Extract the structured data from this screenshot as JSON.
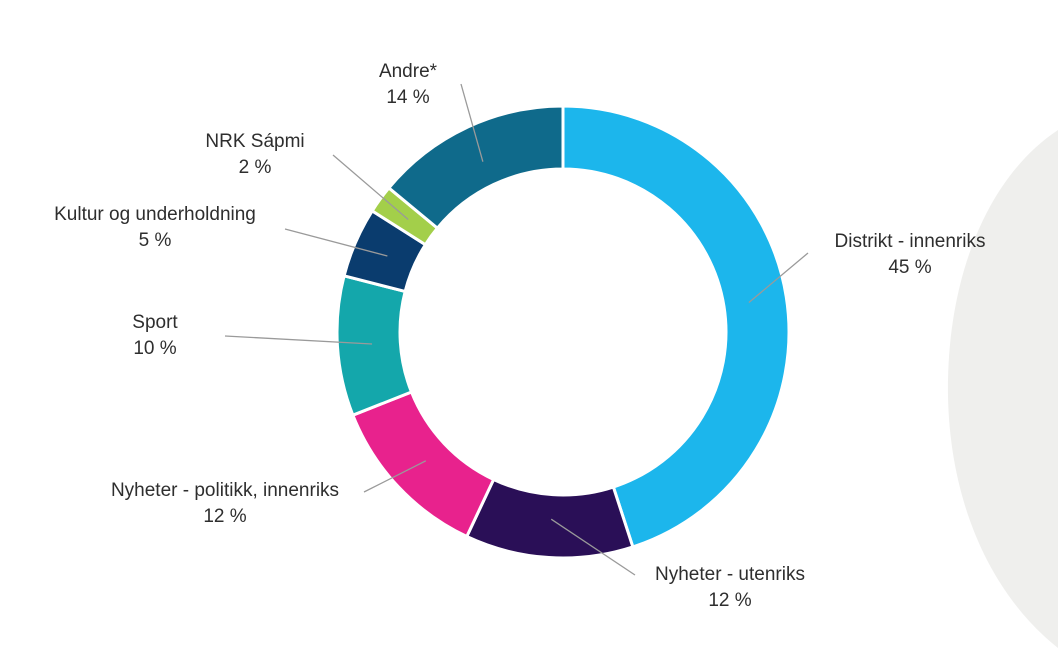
{
  "chart_data": {
    "type": "pie",
    "style": "donut",
    "slices": [
      {
        "label": "Distrikt - innenriks",
        "value": 45,
        "value_label": "45 %",
        "color": "#1cb6ec"
      },
      {
        "label": "Nyheter - utenriks",
        "value": 12,
        "value_label": "12 %",
        "color": "#2a0f57"
      },
      {
        "label": "Nyheter - politikk, innenriks",
        "value": 12,
        "value_label": "12 %",
        "color": "#e8228d"
      },
      {
        "label": "Sport",
        "value": 10,
        "value_label": "10 %",
        "color": "#14a7ab"
      },
      {
        "label": "Kultur og underholdning",
        "value": 5,
        "value_label": "5 %",
        "color": "#0a3c6e"
      },
      {
        "label": "NRK Sápmi",
        "value": 2,
        "value_label": "2 %",
        "color": "#a3cf4a"
      },
      {
        "label": "Andre*",
        "value": 14,
        "value_label": "14 %",
        "color": "#0f6a8b"
      }
    ]
  },
  "colors": {
    "background": "#ffffff",
    "decor_shape": "#efefed",
    "leader_line": "#9a9a9a"
  }
}
